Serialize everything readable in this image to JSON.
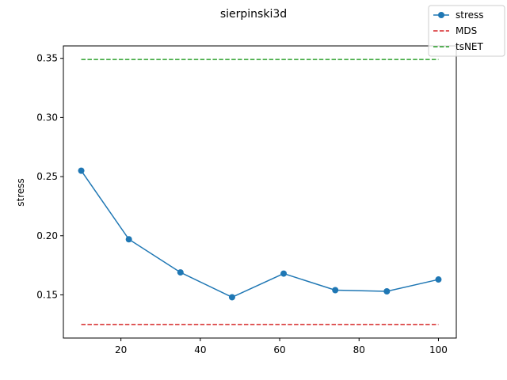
{
  "chart_data": {
    "type": "line",
    "title": "sierpinski3d",
    "xlabel": "",
    "ylabel": "stress",
    "xlim": [
      5.5,
      104.5
    ],
    "ylim": [
      0.1135,
      0.3605
    ],
    "xticks": [
      20,
      40,
      60,
      80,
      100
    ],
    "xtick_labels": [
      "20",
      "40",
      "60",
      "80",
      "100"
    ],
    "yticks": [
      0.15,
      0.2,
      0.25,
      0.3,
      0.35
    ],
    "ytick_labels": [
      "0.15",
      "0.20",
      "0.25",
      "0.30",
      "0.35"
    ],
    "grid": false,
    "legend_position": "top-right",
    "series": [
      {
        "name": "stress",
        "style": "solid-marker",
        "color": "#1f77b4",
        "x": [
          10,
          22,
          35,
          48,
          61,
          74,
          87,
          100
        ],
        "y": [
          0.255,
          0.197,
          0.169,
          0.148,
          0.168,
          0.154,
          0.153,
          0.163
        ]
      },
      {
        "name": "MDS",
        "style": "dashed",
        "color": "#d62728",
        "x": [
          10,
          100
        ],
        "y": [
          0.125,
          0.125
        ]
      },
      {
        "name": "tsNET",
        "style": "dashed",
        "color": "#2ca02c",
        "x": [
          10,
          100
        ],
        "y": [
          0.349,
          0.349
        ]
      }
    ]
  }
}
